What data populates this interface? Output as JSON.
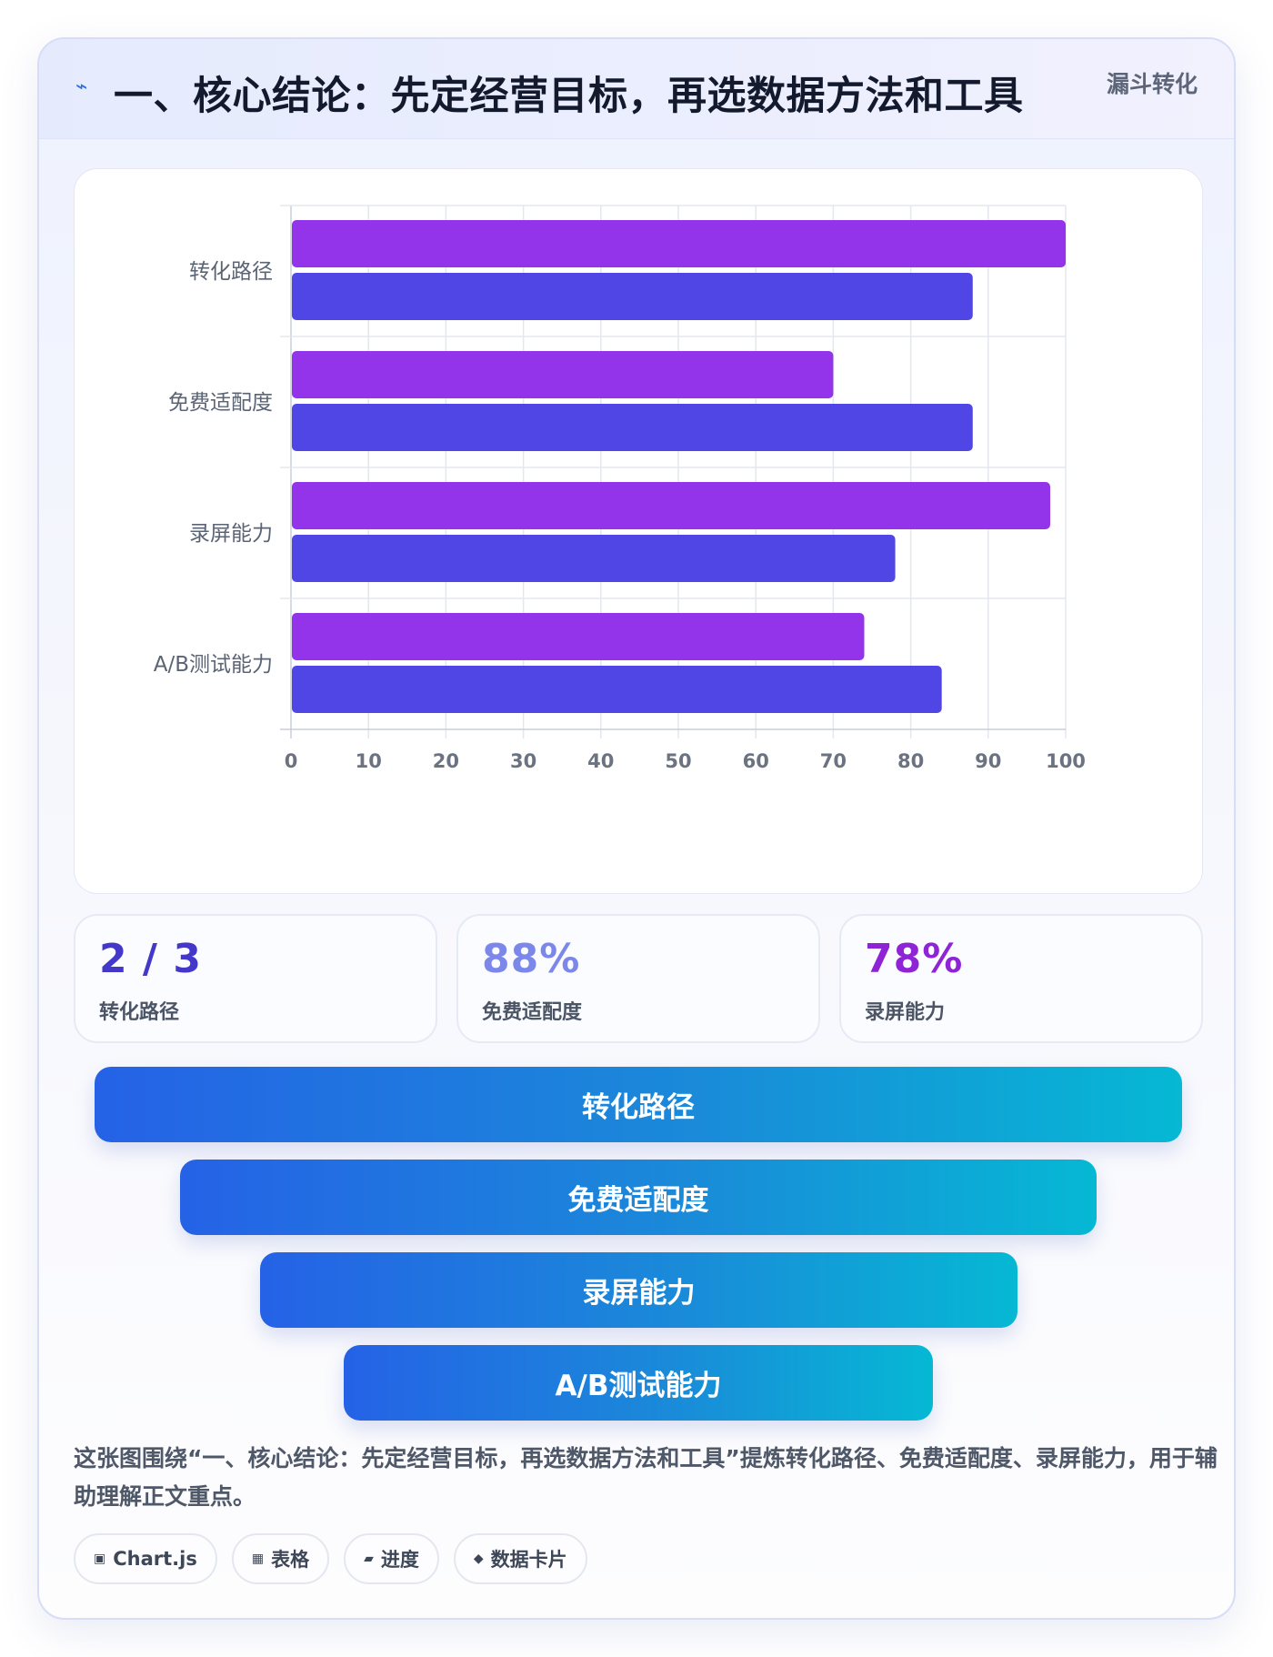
{
  "header": {
    "icon": "lightning-icon",
    "title": "一、核心结论：先定经营目标，再选数据方法和工具",
    "tag": "漏斗转化"
  },
  "chart_data": {
    "type": "bar",
    "orientation": "horizontal",
    "categories": [
      "转化路径",
      "免费适配度",
      "录屏能力",
      "A/B测试能力"
    ],
    "series": [
      {
        "values": [
          100,
          70,
          98,
          74
        ],
        "color": "#9333ea"
      },
      {
        "values": [
          88,
          88,
          78,
          84
        ],
        "color": "#4f46e5"
      }
    ],
    "xlim": [
      0,
      100
    ],
    "xticks": [
      "0",
      "10",
      "20",
      "30",
      "40",
      "50",
      "60",
      "70",
      "80",
      "90",
      "100"
    ],
    "grid": true,
    "legend": "none",
    "title": "",
    "xlabel": "",
    "ylabel": ""
  },
  "stats": [
    {
      "value": "2 / 3",
      "label": "转化路径",
      "color": "#4338ca"
    },
    {
      "value": "88%",
      "label": "免费适配度",
      "color": "#7c87ea"
    },
    {
      "value": "78%",
      "label": "录屏能力",
      "color": "#8e24d6"
    }
  ],
  "funnel": [
    {
      "label": "转化路径"
    },
    {
      "label": "免费适配度"
    },
    {
      "label": "录屏能力"
    },
    {
      "label": "A/B测试能力"
    }
  ],
  "description": "这张图围绕“一、核心结论：先定经营目标，再选数据方法和工具”提炼转化路径、免费适配度、录屏能力，用于辅助理解正文重点。",
  "chips": [
    {
      "icon": "chart-icon",
      "glyph": "▣",
      "label": "Chart.js"
    },
    {
      "icon": "table-icon",
      "glyph": "▦",
      "label": "表格"
    },
    {
      "icon": "progress-icon",
      "glyph": "▰",
      "label": "进度"
    },
    {
      "icon": "data-card-icon",
      "glyph": "◆",
      "label": "数据卡片"
    }
  ]
}
